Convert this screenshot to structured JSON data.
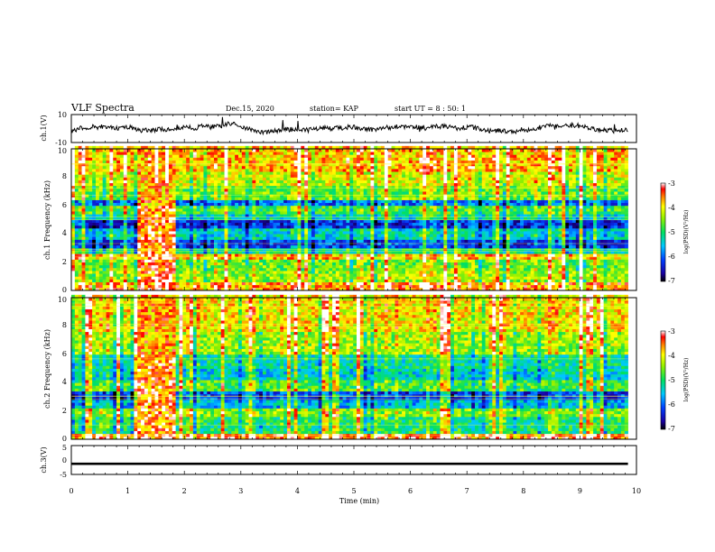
{
  "header": {
    "title": "VLF Spectra",
    "date": "Dec.15, 2020",
    "station": "station= KAP",
    "start": "start  UT =  8 : 50: 1"
  },
  "chart_data": [
    {
      "type": "line",
      "ylabel": "ch.1(V)",
      "ylim": [
        -10,
        10
      ],
      "yticks": [
        "10",
        "-10"
      ],
      "xlim": [
        0,
        10
      ],
      "description_series": "ch.1 waveform amplitude, approx. -7 to 7 V"
    },
    {
      "type": "heatmap",
      "ylabel": "ch.1 Frequency (kHz)",
      "ylim": [
        0,
        10
      ],
      "yticks": [
        "0",
        "2",
        "4",
        "6",
        "8",
        "10"
      ],
      "xlim": [
        0,
        9.85
      ],
      "colorbar": {
        "label": "log(PSD)(V²/Hz)",
        "range": [
          -7,
          -3
        ],
        "ticks": [
          "-3",
          "-4",
          "-5",
          "-6",
          "-7"
        ]
      },
      "rows_khz": [
        {
          "f": [
            0.0,
            0.5
          ],
          "v": -3.6
        },
        {
          "f": [
            0.5,
            1.3
          ],
          "v": -4.4
        },
        {
          "f": [
            1.3,
            2.0
          ],
          "v": -4.6
        },
        {
          "f": [
            2.0,
            2.5
          ],
          "v": -3.8
        },
        {
          "f": [
            2.5,
            3.0
          ],
          "v": -5.2
        },
        {
          "f": [
            3.0,
            3.6
          ],
          "v": -6.2
        },
        {
          "f": [
            3.6,
            4.3
          ],
          "v": -5.4
        },
        {
          "f": [
            4.3,
            5.0
          ],
          "v": -6.3
        },
        {
          "f": [
            5.0,
            5.4
          ],
          "v": -5.3
        },
        {
          "f": [
            5.4,
            5.9
          ],
          "v": -4.8
        },
        {
          "f": [
            5.9,
            6.4
          ],
          "v": -6.0
        },
        {
          "f": [
            6.4,
            7.3
          ],
          "v": -4.6
        },
        {
          "f": [
            7.3,
            8.3
          ],
          "v": -4.2
        },
        {
          "f": [
            8.3,
            10.0
          ],
          "v": -3.8
        }
      ],
      "burst_min": [
        1.15,
        1.8
      ]
    },
    {
      "type": "heatmap",
      "ylabel": "ch.2 Frequency (kHz)",
      "ylim": [
        0,
        10
      ],
      "yticks": [
        "0",
        "2",
        "4",
        "6",
        "8",
        "10"
      ],
      "xlim": [
        0,
        9.85
      ],
      "colorbar": {
        "label": "log(PSD)(V²/Hz)",
        "range": [
          -7,
          -3
        ],
        "ticks": [
          "-3",
          "-4",
          "-5",
          "-6",
          "-7"
        ]
      },
      "rows_khz": [
        {
          "f": [
            0.0,
            0.4
          ],
          "v": -3.4
        },
        {
          "f": [
            0.4,
            1.5
          ],
          "v": -5.0
        },
        {
          "f": [
            1.5,
            2.0
          ],
          "v": -4.5
        },
        {
          "f": [
            2.0,
            2.8
          ],
          "v": -5.6
        },
        {
          "f": [
            2.8,
            3.4
          ],
          "v": -6.2
        },
        {
          "f": [
            3.4,
            4.2
          ],
          "v": -4.8
        },
        {
          "f": [
            4.2,
            5.0
          ],
          "v": -5.4
        },
        {
          "f": [
            5.0,
            6.0
          ],
          "v": -5.2
        },
        {
          "f": [
            6.0,
            7.5
          ],
          "v": -4.4
        },
        {
          "f": [
            7.5,
            10.0
          ],
          "v": -4.0
        }
      ],
      "burst_min": [
        1.15,
        1.8
      ]
    },
    {
      "type": "line",
      "ylabel": "ch.3(V)",
      "ylim": [
        -5,
        5
      ],
      "yticks": [
        "5",
        "0",
        "-5"
      ],
      "xlim": [
        0,
        10
      ],
      "xlabel": "Time (min)",
      "xticks": [
        "0",
        "1",
        "2",
        "3",
        "4",
        "5",
        "6",
        "7",
        "8",
        "9",
        "10"
      ],
      "level": -1.3,
      "band_halfwidth": 0.4
    }
  ]
}
